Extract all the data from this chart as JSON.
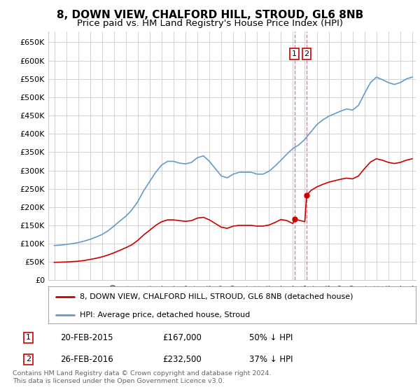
{
  "title": "8, DOWN VIEW, CHALFORD HILL, STROUD, GL6 8NB",
  "subtitle": "Price paid vs. HM Land Registry's House Price Index (HPI)",
  "title_fontsize": 11,
  "subtitle_fontsize": 9.5,
  "background_color": "#ffffff",
  "grid_color": "#cccccc",
  "red_label": "8, DOWN VIEW, CHALFORD HILL, STROUD, GL6 8NB (detached house)",
  "blue_label": "HPI: Average price, detached house, Stroud",
  "footnote": "Contains HM Land Registry data © Crown copyright and database right 2024.\nThis data is licensed under the Open Government Licence v3.0.",
  "sale1_date": "20-FEB-2015",
  "sale1_price": "£167,000",
  "sale1_hpi": "50% ↓ HPI",
  "sale2_date": "26-FEB-2016",
  "sale2_price": "£232,500",
  "sale2_hpi": "37% ↓ HPI",
  "annotation1_year": 2015.13,
  "annotation2_year": 2016.15,
  "annotation1_price": 167000,
  "annotation2_price": 232500,
  "ylim": [
    0,
    680000
  ],
  "yticks": [
    0,
    50000,
    100000,
    150000,
    200000,
    250000,
    300000,
    350000,
    400000,
    450000,
    500000,
    550000,
    600000,
    650000
  ],
  "ytick_labels": [
    "£0",
    "£50K",
    "£100K",
    "£150K",
    "£200K",
    "£250K",
    "£300K",
    "£350K",
    "£400K",
    "£450K",
    "£500K",
    "£550K",
    "£600K",
    "£650K"
  ],
  "red_color": "#cc0000",
  "blue_color": "#6699cc",
  "vline_color": "#cc88aa",
  "box_color": "#cc0000",
  "hpi_years": [
    1995.0,
    1995.5,
    1996.0,
    1996.5,
    1997.0,
    1997.5,
    1998.0,
    1998.5,
    1999.0,
    1999.5,
    2000.0,
    2000.5,
    2001.0,
    2001.5,
    2002.0,
    2002.5,
    2003.0,
    2003.5,
    2004.0,
    2004.5,
    2005.0,
    2005.5,
    2006.0,
    2006.5,
    2007.0,
    2007.5,
    2008.0,
    2008.5,
    2009.0,
    2009.5,
    2010.0,
    2010.5,
    2011.0,
    2011.5,
    2012.0,
    2012.5,
    2013.0,
    2013.5,
    2014.0,
    2014.5,
    2015.0,
    2015.5,
    2016.0,
    2016.5,
    2017.0,
    2017.5,
    2018.0,
    2018.5,
    2019.0,
    2019.5,
    2020.0,
    2020.5,
    2021.0,
    2021.5,
    2022.0,
    2022.5,
    2023.0,
    2023.5,
    2024.0,
    2024.5,
    2025.0
  ],
  "hpi_values": [
    95000,
    96000,
    98000,
    100000,
    103000,
    107000,
    112000,
    118000,
    125000,
    135000,
    148000,
    162000,
    175000,
    192000,
    215000,
    245000,
    270000,
    295000,
    315000,
    325000,
    325000,
    320000,
    318000,
    322000,
    335000,
    340000,
    325000,
    305000,
    285000,
    280000,
    290000,
    295000,
    295000,
    295000,
    290000,
    290000,
    298000,
    312000,
    328000,
    345000,
    360000,
    370000,
    385000,
    405000,
    425000,
    438000,
    448000,
    455000,
    462000,
    468000,
    465000,
    478000,
    510000,
    540000,
    555000,
    548000,
    540000,
    535000,
    540000,
    550000,
    555000
  ],
  "red_years": [
    1995.0,
    1995.5,
    1996.0,
    1996.5,
    1997.0,
    1997.5,
    1998.0,
    1998.5,
    1999.0,
    1999.5,
    2000.0,
    2000.5,
    2001.0,
    2001.5,
    2002.0,
    2002.5,
    2003.0,
    2003.5,
    2004.0,
    2004.5,
    2005.0,
    2005.5,
    2006.0,
    2006.5,
    2007.0,
    2007.5,
    2008.0,
    2008.5,
    2009.0,
    2009.5,
    2010.0,
    2010.5,
    2011.0,
    2011.5,
    2012.0,
    2012.5,
    2013.0,
    2013.5,
    2014.0,
    2014.5,
    2015.0,
    2015.13,
    2016.0,
    2016.15,
    2016.5,
    2017.0,
    2017.5,
    2018.0,
    2018.5,
    2019.0,
    2019.5,
    2020.0,
    2020.5,
    2021.0,
    2021.5,
    2022.0,
    2022.5,
    2023.0,
    2023.5,
    2024.0,
    2024.5,
    2025.0
  ],
  "red_values": [
    49000,
    49500,
    50000,
    51000,
    52000,
    54000,
    57000,
    60000,
    64000,
    69000,
    75000,
    82000,
    89000,
    97000,
    109000,
    124000,
    137000,
    150000,
    160000,
    165000,
    165000,
    163000,
    161000,
    163000,
    170000,
    172000,
    165000,
    155000,
    145000,
    142000,
    148000,
    150000,
    150000,
    150000,
    148000,
    148000,
    151000,
    158000,
    166000,
    163000,
    155000,
    167000,
    160000,
    232500,
    245000,
    255000,
    262000,
    268000,
    272000,
    276000,
    279000,
    277000,
    285000,
    305000,
    323000,
    332000,
    328000,
    322000,
    319000,
    322000,
    328000,
    332000
  ]
}
